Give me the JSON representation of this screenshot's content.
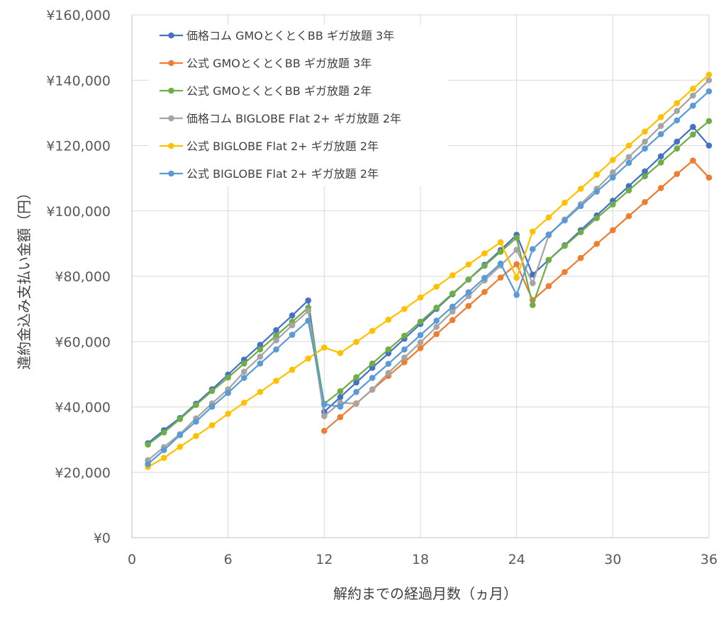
{
  "chart_data": {
    "type": "line",
    "title": "",
    "xlabel": "解約までの経過月数（ヵ月）",
    "ylabel": "違約金込み支払い金額（円）",
    "xlim": [
      0,
      36
    ],
    "ylim": [
      0,
      160000
    ],
    "x_ticks": [
      0,
      6,
      12,
      18,
      24,
      30,
      36
    ],
    "x_tick_labels": [
      "0",
      "6",
      "12",
      "18",
      "24",
      "30",
      "36"
    ],
    "y_ticks": [
      0,
      20000,
      40000,
      60000,
      80000,
      100000,
      120000,
      140000,
      160000
    ],
    "y_tick_labels": [
      "¥0",
      "¥20,000",
      "¥40,000",
      "¥60,000",
      "¥80,000",
      "¥100,000",
      "¥120,000",
      "¥140,000",
      "¥160,000"
    ],
    "grid": true,
    "legend_position": "top-left",
    "x": [
      1,
      2,
      3,
      4,
      5,
      6,
      7,
      8,
      9,
      10,
      11,
      12,
      13,
      14,
      15,
      16,
      17,
      18,
      19,
      20,
      21,
      22,
      23,
      24,
      25,
      26,
      27,
      28,
      29,
      30,
      31,
      32,
      33,
      34,
      35,
      36
    ],
    "series": [
      {
        "name": "価格コム GMOとくとくBB ギガ放題 3年",
        "color": "#4472C4",
        "values": [
          28900,
          32900,
          36600,
          41000,
          45400,
          49900,
          54500,
          59000,
          63500,
          68000,
          72600,
          38500,
          43000,
          47500,
          52000,
          56400,
          60900,
          65400,
          70000,
          74500,
          79000,
          83500,
          88000,
          92700,
          80500,
          85000,
          89500,
          94100,
          98600,
          103100,
          107600,
          112100,
          116700,
          121200,
          125700,
          120000
        ]
      },
      {
        "name": "公式 GMOとくとくBB ギガ放題 3年",
        "color": "#ED7D31",
        "values": [
          null,
          null,
          null,
          null,
          null,
          null,
          null,
          null,
          null,
          null,
          null,
          32700,
          36900,
          41100,
          45300,
          49500,
          53700,
          58000,
          62300,
          66600,
          70900,
          75200,
          79600,
          83700,
          72700,
          77000,
          81300,
          85600,
          89900,
          94100,
          98400,
          102700,
          107000,
          111300,
          115400,
          110200
        ]
      },
      {
        "name": "公式 GMOとくとくBB ギガ放題 2年",
        "color": "#70AD47",
        "values": [
          28500,
          32200,
          36300,
          40600,
          44900,
          49000,
          53300,
          57600,
          61800,
          66100,
          70400,
          41000,
          44800,
          49100,
          53300,
          57600,
          61800,
          66100,
          70400,
          74700,
          79000,
          83200,
          87500,
          91800,
          71200,
          85000,
          89300,
          93500,
          97800,
          102000,
          106300,
          110600,
          114800,
          119100,
          123400,
          127500
        ]
      },
      {
        "name": "価格コム BIGLOBE Flat 2+ ギガ放題 2年",
        "color": "#A5A5A5",
        "values": [
          23700,
          27700,
          31700,
          36500,
          41100,
          45400,
          50800,
          55400,
          60400,
          65000,
          69400,
          37200,
          41300,
          41000,
          45400,
          50400,
          55100,
          59800,
          64500,
          69200,
          73900,
          78700,
          83300,
          88100,
          77900,
          92500,
          97400,
          102100,
          106800,
          111800,
          116500,
          121200,
          126000,
          130600,
          135300,
          140000
        ]
      },
      {
        "name": "公式 BIGLOBE Flat 2+ ギガ放題 2年",
        "color": "#FFC000",
        "values": [
          21600,
          24400,
          27800,
          31100,
          34400,
          37900,
          41300,
          44600,
          48000,
          51400,
          54800,
          58200,
          56500,
          59900,
          63300,
          66700,
          70000,
          73500,
          76800,
          80300,
          83600,
          87000,
          90400,
          79500,
          93700,
          98000,
          102500,
          106800,
          111100,
          115600,
          120000,
          124300,
          128700,
          133000,
          137400,
          141700
        ]
      },
      {
        "name": "公式 BIGLOBE Flat 2+ ギガ放題 2年",
        "color": "#5B9BD5",
        "values": [
          22500,
          26800,
          31400,
          35500,
          40100,
          44300,
          48900,
          53300,
          57600,
          62100,
          66400,
          40800,
          40100,
          44600,
          48900,
          53200,
          57600,
          62000,
          66400,
          70700,
          75100,
          79500,
          83900,
          74300,
          88300,
          92800,
          97100,
          101500,
          105900,
          110200,
          114700,
          119100,
          123500,
          127700,
          132200,
          136600
        ]
      }
    ]
  }
}
